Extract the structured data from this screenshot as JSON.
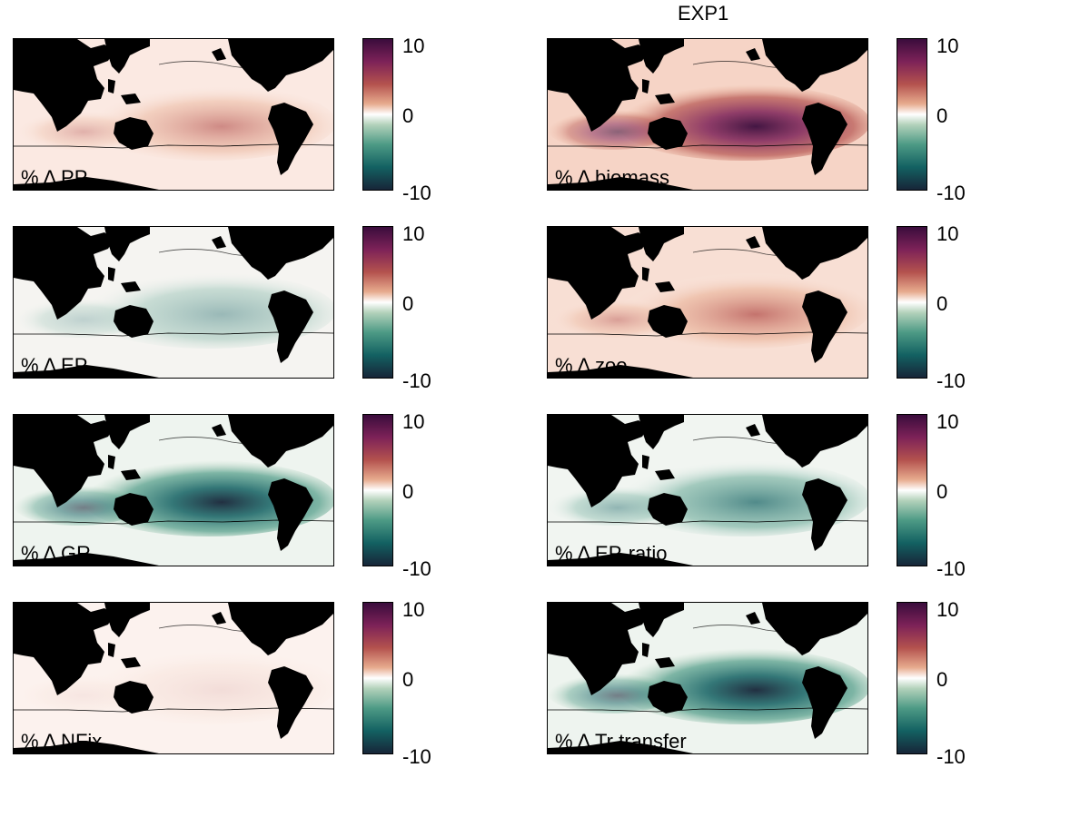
{
  "figure_title": "EXP1",
  "colorbar": {
    "ticks": [
      "10",
      "0",
      "-10"
    ],
    "vmin": -10,
    "vmax": 10,
    "colormap": [
      "#3a0c3c",
      "#7d2258",
      "#b4524e",
      "#e7ab8e",
      "#ffffff",
      "#b2d1ba",
      "#4d9a85",
      "#136162",
      "#172538"
    ]
  },
  "chart_data": [
    {
      "type": "heatmap",
      "panel_label": "% Δ PP",
      "variable": "PP",
      "pattern": "mild_positive",
      "peak_change_percent": 4
    },
    {
      "type": "heatmap",
      "panel_label": "% Δ biomass",
      "variable": "biomass",
      "pattern": "strong_positive",
      "peak_change_percent": 10
    },
    {
      "type": "heatmap",
      "panel_label": "% Δ EP",
      "variable": "EP",
      "pattern": "mixed_slight_negative",
      "peak_change_percent": -3
    },
    {
      "type": "heatmap",
      "panel_label": "% Δ zoo",
      "variable": "zoo",
      "pattern": "moderate_positive",
      "peak_change_percent": 5
    },
    {
      "type": "heatmap",
      "panel_label": "% Δ GR",
      "variable": "GR",
      "pattern": "strong_negative",
      "peak_change_percent": -8
    },
    {
      "type": "heatmap",
      "panel_label": "% Δ EP-ratio",
      "variable": "EP-ratio",
      "pattern": "moderate_negative",
      "peak_change_percent": -5
    },
    {
      "type": "heatmap",
      "panel_label": "% Δ NFix",
      "variable": "NFix",
      "pattern": "near_zero",
      "peak_change_percent": 2
    },
    {
      "type": "heatmap",
      "panel_label": "% Δ Tr transfer",
      "variable": "Tr transfer",
      "pattern": "strong_negative",
      "peak_change_percent": -10
    }
  ]
}
